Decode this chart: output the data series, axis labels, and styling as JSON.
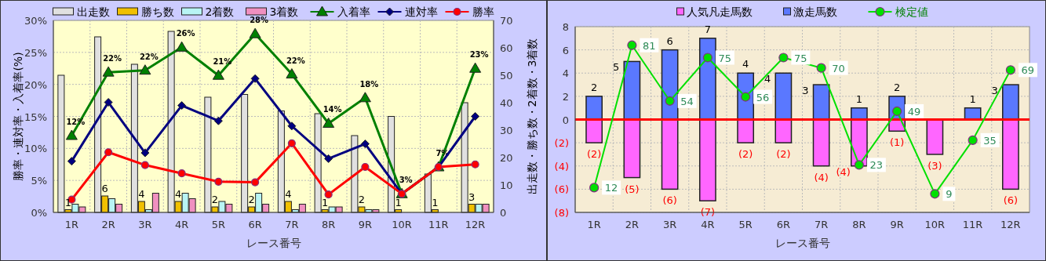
{
  "chart_data": [
    {
      "type": "bar",
      "categories": [
        "1R",
        "2R",
        "3R",
        "4R",
        "5R",
        "6R",
        "7R",
        "8R",
        "9R",
        "10R",
        "11R",
        "12R"
      ],
      "xlabel": "レース番号",
      "ylabel": "勝率・連対率・入着率(%)",
      "y2label": "出走数・勝ち数・2着数・3着数",
      "ylim": [
        0,
        30
      ],
      "yticks": [
        {
          "value": 0,
          "label": "0%"
        },
        {
          "value": 5,
          "label": "5%"
        },
        {
          "value": 10,
          "label": "10%"
        },
        {
          "value": 15,
          "label": "15%"
        },
        {
          "value": 20,
          "label": "20%"
        },
        {
          "value": 25,
          "label": "25%"
        },
        {
          "value": 30,
          "label": "30%"
        }
      ],
      "y2lim": [
        0,
        70
      ],
      "y2ticks": [
        0,
        10,
        20,
        30,
        40,
        50,
        60,
        70
      ],
      "grid": true,
      "legend": "top",
      "series": [
        {
          "name": "出走数",
          "type": "bar",
          "axis": "y2",
          "color": "#e0e0e0",
          "values": [
            50,
            64,
            54,
            66,
            42,
            43,
            37,
            36,
            28,
            35,
            14,
            40
          ]
        },
        {
          "name": "勝ち数",
          "type": "bar",
          "axis": "y2",
          "color": "#f0c000",
          "values": [
            1,
            6,
            4,
            4,
            2,
            2,
            4,
            1,
            2,
            1,
            1,
            3
          ],
          "value_labels": [
            "1",
            "6",
            "4",
            "4",
            "2",
            "2",
            "4",
            "1",
            "2",
            "1",
            "1",
            "3"
          ]
        },
        {
          "name": "2着数",
          "type": "bar",
          "axis": "y2",
          "color": "#b8f4f4",
          "values": [
            3,
            5,
            1,
            7,
            4,
            7,
            1,
            2,
            1,
            0,
            0,
            3
          ]
        },
        {
          "name": "3着数",
          "type": "bar",
          "axis": "y2",
          "color": "#f090c0",
          "values": [
            2,
            3,
            7,
            5,
            3,
            3,
            3,
            2,
            1,
            0,
            0,
            3
          ]
        },
        {
          "name": "入着率",
          "type": "line",
          "color": "#008000",
          "marker": "triangle",
          "values": [
            12.0,
            21.9,
            22.2,
            25.8,
            21.4,
            27.9,
            21.6,
            13.9,
            17.9,
            2.9,
            7.1,
            22.5
          ],
          "value_labels": [
            "12%",
            "22%",
            "22%",
            "26%",
            "21%",
            "28%",
            "22%",
            "14%",
            "18%",
            "3%",
            "7%",
            "23%"
          ]
        },
        {
          "name": "連対率",
          "type": "line",
          "color": "#000080",
          "marker": "diamond",
          "values": [
            8.0,
            17.2,
            9.3,
            16.7,
            14.3,
            20.9,
            13.5,
            8.4,
            10.7,
            2.9,
            7.1,
            15.0
          ]
        },
        {
          "name": "勝率",
          "type": "line",
          "color": "#ff0000",
          "marker": "circle",
          "values": [
            2.0,
            9.4,
            7.4,
            6.1,
            4.8,
            4.7,
            10.8,
            2.8,
            7.1,
            2.9,
            7.1,
            7.5
          ]
        }
      ]
    },
    {
      "type": "bar",
      "stacked": true,
      "categories": [
        "1R",
        "2R",
        "3R",
        "4R",
        "5R",
        "6R",
        "7R",
        "8R",
        "9R",
        "10R",
        "11R",
        "12R"
      ],
      "xlabel": "レース番号",
      "ylim": [
        -8,
        8
      ],
      "yticks": [
        8,
        6,
        4,
        2,
        0,
        {
          "value": -2,
          "label": "(2)"
        },
        {
          "value": -4,
          "label": "(4)"
        },
        {
          "value": -6,
          "label": "(6)"
        },
        {
          "value": -8,
          "label": "(8)"
        }
      ],
      "y2lim": [
        0,
        90
      ],
      "grid": true,
      "legend": "top",
      "ref_lines": [
        {
          "axis": "y",
          "value": 0,
          "color": "#ff0000"
        }
      ],
      "series": [
        {
          "name": "人気凡走馬数",
          "color": "#ff66ff",
          "values": [
            -2,
            -5,
            -6,
            -7,
            -2,
            -2,
            -4,
            -4,
            -1,
            -3,
            0,
            -6
          ],
          "value_labels": [
            "(2)",
            "(5)",
            "(6)",
            "(7)",
            "(2)",
            "(2)",
            "(4)",
            "(4)",
            "(1)",
            "(3)",
            null,
            "(6)"
          ]
        },
        {
          "name": "激走馬数",
          "color": "#5a78ff",
          "values": [
            2,
            5,
            6,
            7,
            4,
            4,
            3,
            1,
            2,
            0,
            1,
            3
          ],
          "value_labels": [
            "2",
            "5",
            "6",
            "7",
            "4",
            "4",
            "3",
            "1",
            "2",
            null,
            "1",
            "3"
          ]
        },
        {
          "name": "検定値",
          "type": "line",
          "axis": "y2",
          "color": "#00e000",
          "marker": "circle",
          "values": [
            12,
            81,
            54,
            75,
            56,
            75,
            70,
            23,
            49,
            9,
            35,
            69
          ],
          "value_labels": [
            "12",
            "81",
            "54",
            "75",
            "56",
            "75",
            "70",
            "23",
            "49",
            "9",
            "35",
            "69"
          ]
        }
      ]
    }
  ]
}
